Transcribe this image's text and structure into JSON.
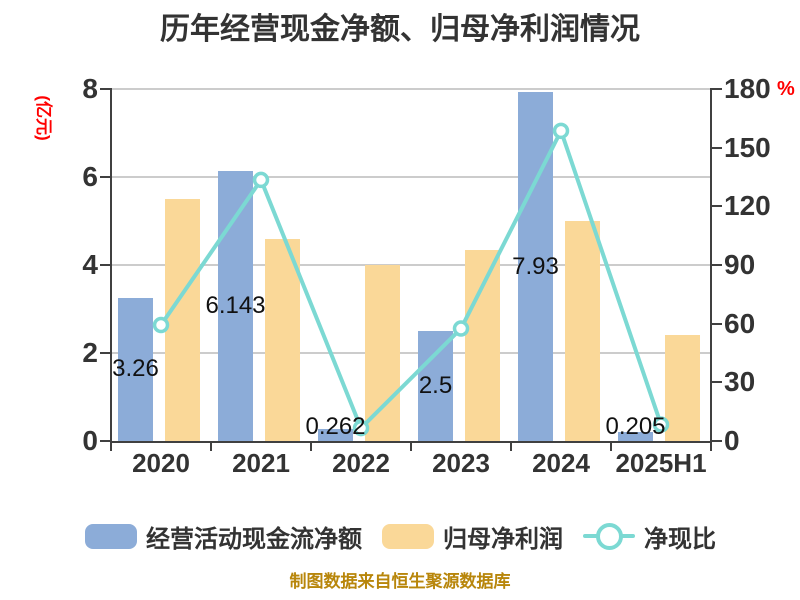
{
  "title": "历年经营现金净额、归母净利润情况",
  "footer": "制图数据来自恒生聚源数据库",
  "colors": {
    "bar_blue": "#8CACD8",
    "bar_yellow": "#FAD898",
    "line_teal": "#7CD9D3",
    "marker_fill": "#FFFFFF",
    "axis": "#404040",
    "grid": "#CCCCCC",
    "text": "#333333",
    "data_label": "#111111",
    "accent_red": "#FF0000",
    "footer_gold": "#B8860B"
  },
  "chart_data": {
    "type": "bar+line combo",
    "categories": [
      "2020",
      "2021",
      "2022",
      "2023",
      "2024",
      "2025H1"
    ],
    "series": [
      {
        "name": "经营活动现金流净额",
        "type": "bar",
        "axis": "left",
        "values": [
          3.26,
          6.143,
          0.262,
          2.5,
          7.93,
          0.205
        ],
        "labels": [
          "3.26",
          "6.143",
          "0.262",
          "2.5",
          "7.93",
          "0.205"
        ]
      },
      {
        "name": "归母净利润",
        "type": "bar",
        "axis": "left",
        "values": [
          5.5,
          4.6,
          4.0,
          4.35,
          5.0,
          2.4
        ]
      },
      {
        "name": "净现比",
        "type": "line",
        "axis": "right",
        "values": [
          59.3,
          133.5,
          6.6,
          57.5,
          158.6,
          8.4
        ]
      }
    ],
    "left_axis": {
      "name": "(亿元)",
      "min": 0,
      "max": 8,
      "ticks": [
        0,
        2,
        4,
        6,
        8
      ]
    },
    "right_axis": {
      "name": "%",
      "min": 0,
      "max": 180,
      "ticks": [
        0,
        30,
        60,
        90,
        120,
        150,
        180
      ]
    },
    "grid": "horizontal gridlines on",
    "legend_position": "bottom"
  },
  "legend": [
    {
      "label": "经营活动现金流净额"
    },
    {
      "label": "归母净利润"
    },
    {
      "label": "净现比"
    }
  ]
}
